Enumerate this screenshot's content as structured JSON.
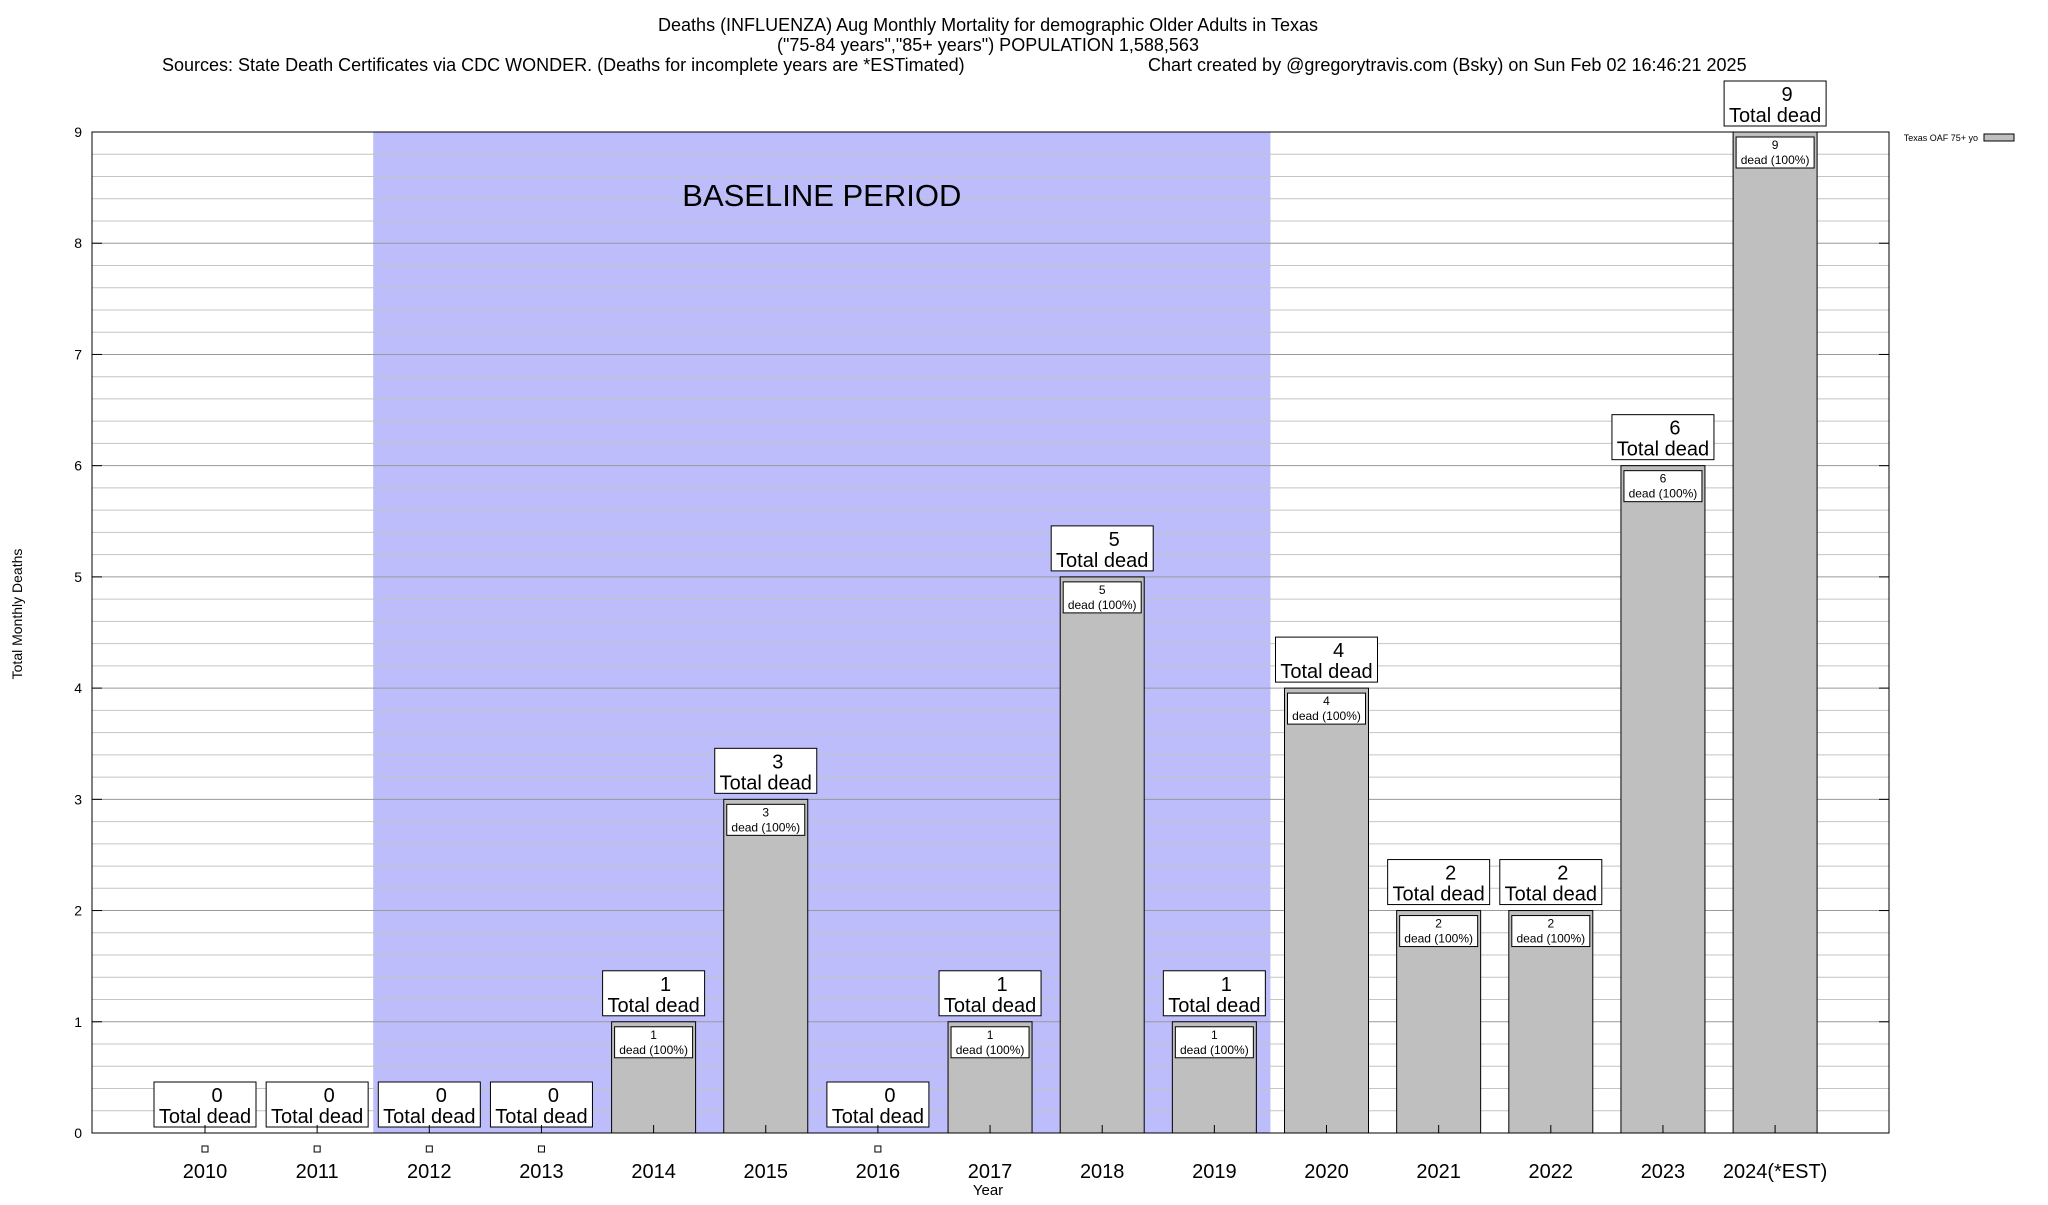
{
  "chart_data": {
    "type": "bar",
    "title_lines": [
      "Deaths (INFLUENZA) Aug Monthly Mortality for demographic Older Adults in Texas",
      "(\"75-84 years\",\"85+ years\") POPULATION 1,588,563"
    ],
    "sources": "Sources: State Death Certificates via CDC WONDER. (Deaths for incomplete years are *ESTimated)",
    "credit": "Chart created by @gregorytravis.com (Bsky) on Sun Feb 02 16:46:21 2025",
    "xlabel": "Year",
    "ylabel": "Total Monthly Deaths",
    "ylim": [
      0,
      9
    ],
    "y_ticks": [
      "0",
      "1",
      "2",
      "3",
      "4",
      "5",
      "6",
      "7",
      "8",
      "9"
    ],
    "minor_grid_step": 0.2,
    "categories": [
      "2010",
      "2011",
      "2012",
      "2013",
      "2014",
      "2015",
      "2016",
      "2017",
      "2018",
      "2019",
      "2020",
      "2021",
      "2022",
      "2023",
      "2024(*EST)"
    ],
    "series": [
      {
        "name": "Texas OAF 75+ yo",
        "values": [
          0,
          0,
          0,
          0,
          1,
          3,
          0,
          1,
          5,
          1,
          4,
          2,
          2,
          6,
          9
        ]
      }
    ],
    "total_label": "Total dead",
    "inner_label": "dead (100%)",
    "baseline": {
      "label": "BASELINE PERIOD",
      "from": "2012",
      "to": "2019",
      "color": "#bdbdfb"
    },
    "bar_color": "#bfbfbf",
    "legend_position": "top-right"
  }
}
